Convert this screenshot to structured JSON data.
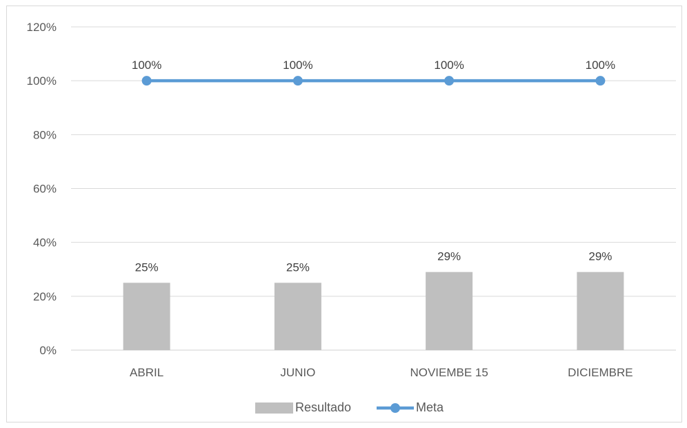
{
  "chart_data": {
    "type": "bar",
    "categories": [
      "ABRIL",
      "JUNIO",
      "NOVIEMBE 15",
      "DICIEMBRE"
    ],
    "series": [
      {
        "name": "Resultado",
        "type": "bar",
        "values": [
          25,
          25,
          29,
          29
        ],
        "labels": [
          "25%",
          "25%",
          "29%",
          "29%"
        ],
        "color": "#bfbfbf"
      },
      {
        "name": "Meta",
        "type": "line",
        "values": [
          100,
          100,
          100,
          100
        ],
        "labels": [
          "100%",
          "100%",
          "100%",
          "100%"
        ],
        "color": "#5b9bd5"
      }
    ],
    "yticks": [
      "0%",
      "20%",
      "40%",
      "60%",
      "80%",
      "100%",
      "120%"
    ],
    "ylim": [
      0,
      120
    ],
    "grid": true,
    "legend": "bottom"
  }
}
